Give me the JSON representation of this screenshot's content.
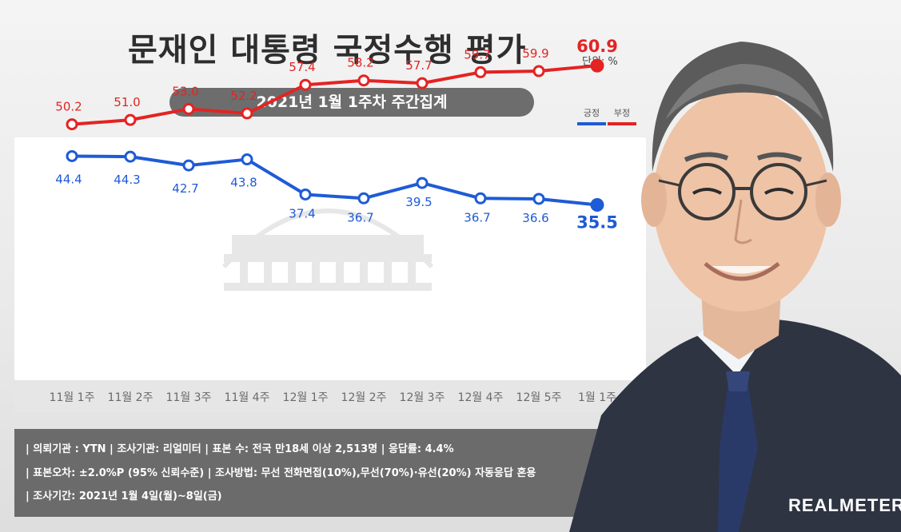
{
  "title": "문재인 대통령 국정수행 평가",
  "unit": "단위: %",
  "period": "2021년 1월 1주차 주간집계",
  "legend": {
    "positive_label": "긍정",
    "negative_label": "부정"
  },
  "colors": {
    "positive": "#1e5bd6",
    "negative": "#e42323",
    "pill": "#6d6d6d",
    "info_bg": "#6b6b6b"
  },
  "chart_data": {
    "type": "line",
    "categories": [
      "11월 1주",
      "11월 2주",
      "11월 3주",
      "11월 4주",
      "12월 1주",
      "12월 2주",
      "12월 3주",
      "12월 4주",
      "12월 5주",
      "1월 1주"
    ],
    "series": [
      {
        "name": "부정",
        "values": [
          50.2,
          51.0,
          53.0,
          52.2,
          57.4,
          58.2,
          57.7,
          59.7,
          59.9,
          60.9
        ]
      },
      {
        "name": "긍정",
        "values": [
          44.4,
          44.3,
          42.7,
          43.8,
          37.4,
          36.7,
          39.5,
          36.7,
          36.6,
          35.5
        ]
      }
    ],
    "title": "문재인 대통령 국정수행 평가",
    "grid": false
  },
  "info": {
    "line1": "| 의뢰기관 : YTN   |   조사기관: 리얼미터 |   표본 수: 전국 만18세 이상 2,513명   |   응답률: 4.4%",
    "line2": "| 표본오차: ±2.0%P (95% 신뢰수준) |   조사방법: 무선 전화면접(10%),무선(70%)·유선(20%) 자동응답 혼용",
    "line3": "| 조사기간: 2021년 1월 4일(월)~8일(금)"
  },
  "brand": "REALMETER"
}
